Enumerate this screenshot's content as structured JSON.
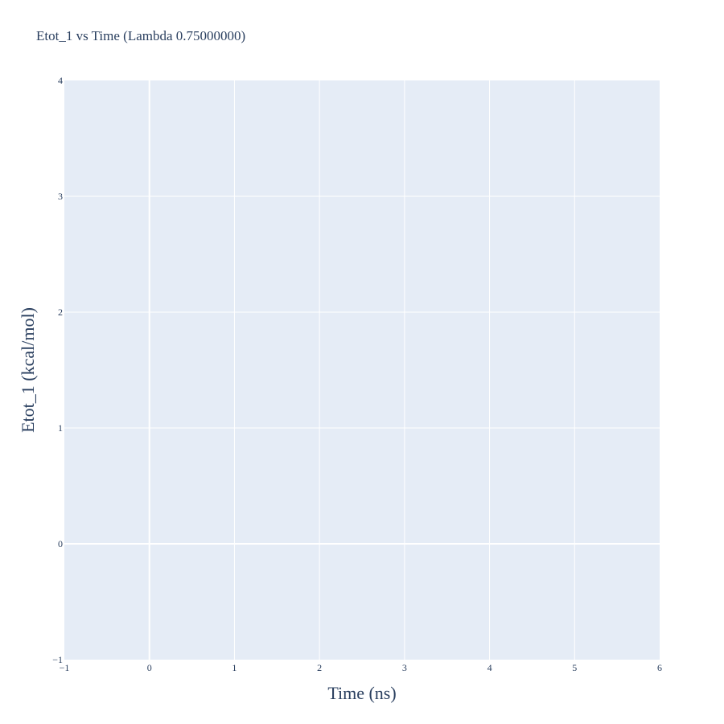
{
  "chart_data": {
    "type": "line",
    "title": "Etot_1 vs Time (Lambda 0.75000000)",
    "xlabel": "Time (ns)",
    "ylabel": "Etot_1 (kcal/mol)",
    "xlim": [
      -1,
      6
    ],
    "ylim": [
      -1,
      4
    ],
    "x_ticks": [
      -1,
      0,
      1,
      2,
      3,
      4,
      5,
      6
    ],
    "y_ticks": [
      -1,
      0,
      1,
      2,
      3,
      4
    ],
    "x_tick_labels": [
      "−1",
      "0",
      "1",
      "2",
      "3",
      "4",
      "5",
      "6"
    ],
    "y_tick_labels": [
      "−1",
      "0",
      "1",
      "2",
      "3",
      "4"
    ],
    "series": [],
    "grid": true,
    "colors": {
      "plot_background": "#e5ecf6",
      "grid": "#ffffff",
      "text": "#2a3f5f"
    }
  }
}
